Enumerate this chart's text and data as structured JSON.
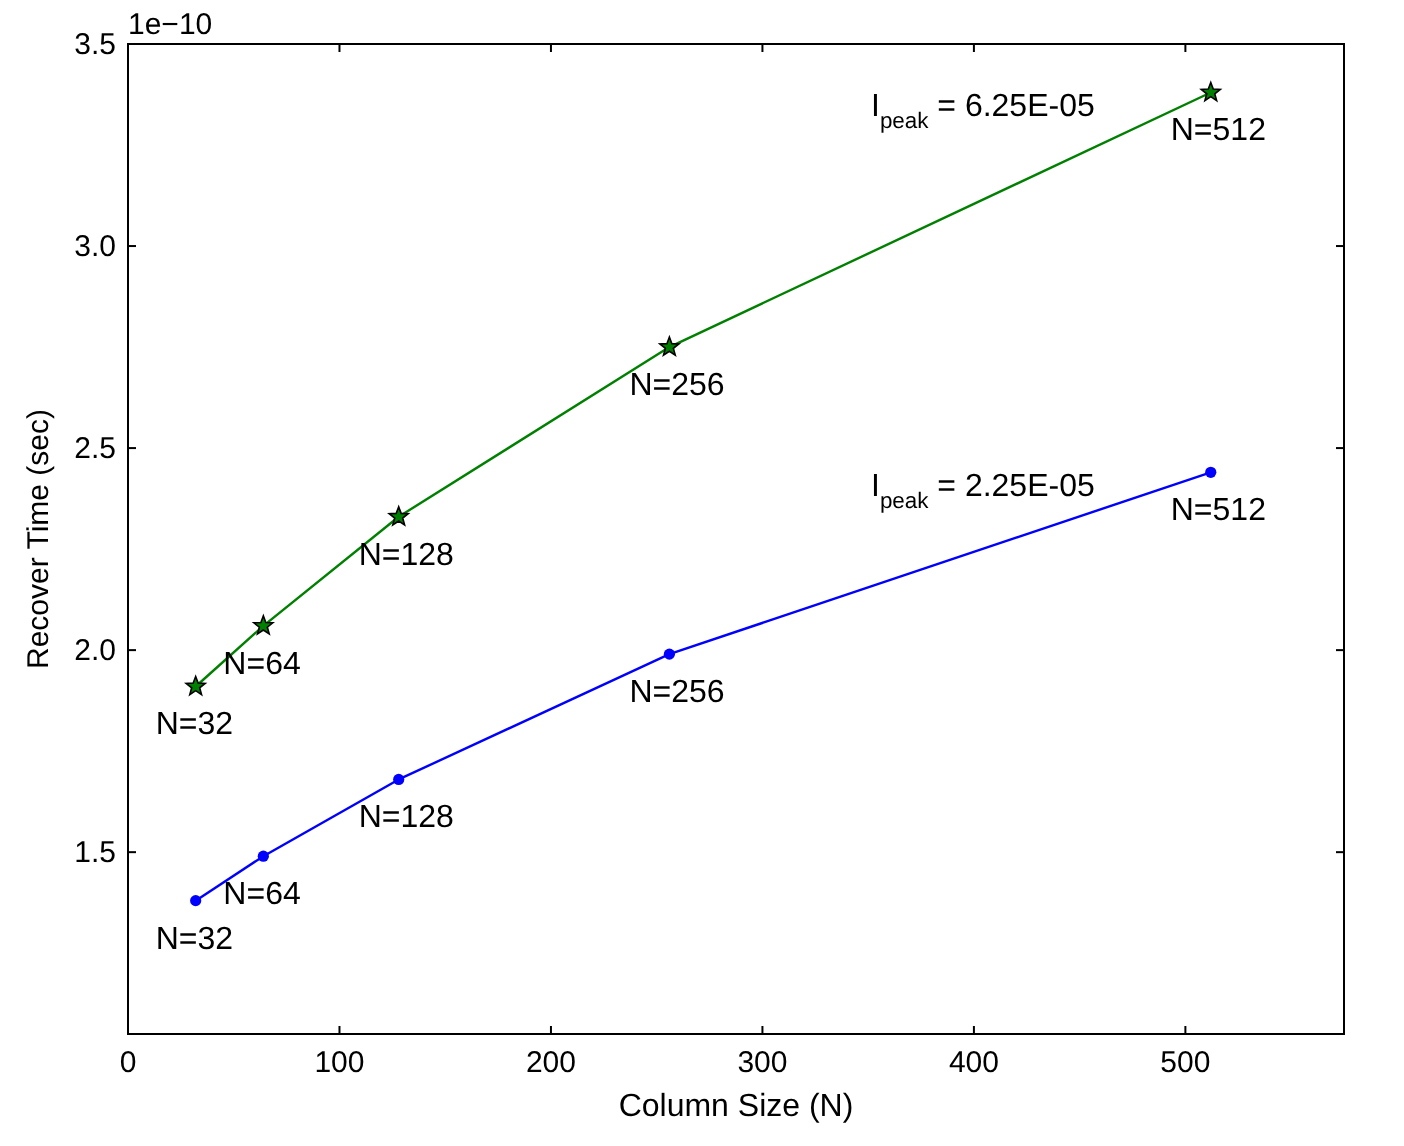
{
  "chart_data": {
    "type": "line",
    "xlabel": "Column Size (N)",
    "ylabel": "Recover Time (sec)",
    "x": [
      32,
      64,
      128,
      256,
      512
    ],
    "series": [
      {
        "name": "I$_{peak}$ = 6.25E-05",
        "color": "#008000",
        "marker": "star",
        "values": [
          1.91,
          2.06,
          2.33,
          2.75,
          3.38
        ]
      },
      {
        "name": "I$_{peak}$ = 2.25E-05",
        "color": "#0000ff",
        "marker": "circle",
        "values": [
          1.38,
          1.49,
          1.68,
          1.99,
          2.44
        ]
      }
    ],
    "xlim": [
      0,
      575
    ],
    "xticks": [
      0,
      100,
      200,
      300,
      400,
      500
    ],
    "ylim": [
      1.05,
      3.5
    ],
    "yticks": [
      {
        "value": 1.5,
        "label": "1.5"
      },
      {
        "value": 2,
        "label": "2.0"
      },
      {
        "value": 2.5,
        "label": "2.5"
      },
      {
        "value": 3,
        "label": "3.0"
      },
      {
        "value": 3.5,
        "label": "3.5"
      }
    ],
    "grid": false,
    "line_style": "solid",
    "annotations": [
      "1e−10",
      {
        "text": "N=32",
        "x": 32,
        "y": 1.91
      },
      {
        "text": "N=64",
        "x": 64,
        "y": 2.06
      },
      {
        "text": "N=128",
        "x": 128,
        "y": 2.33
      },
      {
        "text": "N=256",
        "x": 256,
        "y": 2.75
      },
      {
        "text": "N=512",
        "x": 512,
        "y": 3.38
      },
      {
        "text": "N=32",
        "x": 32,
        "y": 1.38
      },
      {
        "text": "N=64",
        "x": 64,
        "y": 1.49
      },
      {
        "text": "N=128",
        "x": 128,
        "y": 1.68
      },
      {
        "text": "N=256",
        "x": 256,
        "y": 1.99
      },
      {
        "text": "N=512",
        "x": 512,
        "y": 2.44
      }
    ]
  }
}
